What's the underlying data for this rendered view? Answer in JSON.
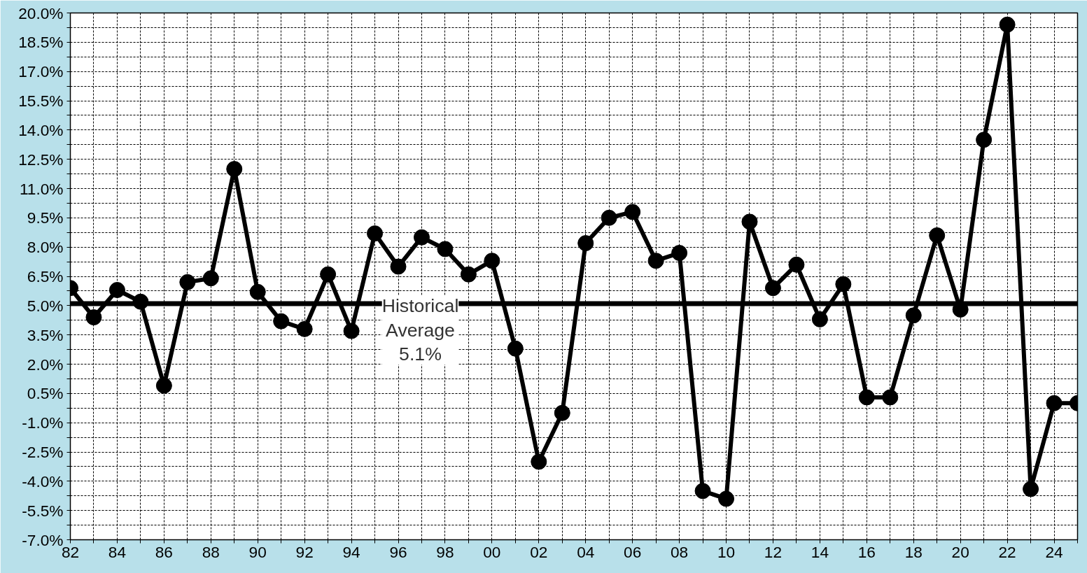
{
  "chart_data": {
    "type": "line",
    "x": [
      1982,
      1983,
      1984,
      1985,
      1986,
      1987,
      1988,
      1989,
      1990,
      1991,
      1992,
      1993,
      1994,
      1995,
      1996,
      1997,
      1998,
      1999,
      2000,
      2001,
      2002,
      2003,
      2004,
      2005,
      2006,
      2007,
      2008,
      2009,
      2010,
      2011,
      2012,
      2013,
      2014,
      2015,
      2016,
      2017,
      2018,
      2019,
      2020,
      2021,
      2022,
      2023,
      2024,
      2025
    ],
    "series": [
      {
        "color": "#000000",
        "values": [
          5.9,
          4.4,
          5.8,
          5.2,
          0.9,
          6.2,
          6.4,
          12.0,
          5.7,
          4.2,
          3.8,
          6.6,
          3.7,
          8.7,
          7.0,
          8.5,
          7.9,
          6.6,
          7.3,
          2.8,
          -3.0,
          -0.5,
          8.2,
          9.5,
          9.8,
          7.3,
          7.7,
          -4.5,
          -4.9,
          9.3,
          5.9,
          7.1,
          4.3,
          6.1,
          0.3,
          0.3,
          4.5,
          8.6,
          4.8,
          13.5,
          19.4,
          -4.4,
          0.0,
          0.0
        ]
      }
    ],
    "xlim": [
      1982,
      2025
    ],
    "ylim": [
      -7,
      20
    ],
    "xticks": [
      {
        "value": 1982,
        "label": "82"
      },
      {
        "value": 1983,
        "label": null
      },
      {
        "value": 1984,
        "label": "84"
      },
      {
        "value": 1985,
        "label": null
      },
      {
        "value": 1986,
        "label": "86"
      },
      {
        "value": 1987,
        "label": null
      },
      {
        "value": 1988,
        "label": "88"
      },
      {
        "value": 1989,
        "label": null
      },
      {
        "value": 1990,
        "label": "90"
      },
      {
        "value": 1991,
        "label": null
      },
      {
        "value": 1992,
        "label": "92"
      },
      {
        "value": 1993,
        "label": null
      },
      {
        "value": 1994,
        "label": "94"
      },
      {
        "value": 1995,
        "label": null
      },
      {
        "value": 1996,
        "label": "96"
      },
      {
        "value": 1997,
        "label": null
      },
      {
        "value": 1998,
        "label": "98"
      },
      {
        "value": 1999,
        "label": null
      },
      {
        "value": 2000,
        "label": "00"
      },
      {
        "value": 2001,
        "label": null
      },
      {
        "value": 2002,
        "label": "02"
      },
      {
        "value": 2003,
        "label": null
      },
      {
        "value": 2004,
        "label": "04"
      },
      {
        "value": 2005,
        "label": null
      },
      {
        "value": 2006,
        "label": "06"
      },
      {
        "value": 2007,
        "label": null
      },
      {
        "value": 2008,
        "label": "08"
      },
      {
        "value": 2009,
        "label": null
      },
      {
        "value": 2010,
        "label": "10"
      },
      {
        "value": 2011,
        "label": null
      },
      {
        "value": 2012,
        "label": "12"
      },
      {
        "value": 2013,
        "label": null
      },
      {
        "value": 2014,
        "label": "14"
      },
      {
        "value": 2015,
        "label": null
      },
      {
        "value": 2016,
        "label": "16"
      },
      {
        "value": 2017,
        "label": null
      },
      {
        "value": 2018,
        "label": "18"
      },
      {
        "value": 2019,
        "label": null
      },
      {
        "value": 2020,
        "label": "20"
      },
      {
        "value": 2021,
        "label": null
      },
      {
        "value": 2022,
        "label": "22"
      },
      {
        "value": 2023,
        "label": null
      },
      {
        "value": 2024,
        "label": "24"
      },
      {
        "value": 2025,
        "label": null
      }
    ],
    "yticks": [
      {
        "value": -7,
        "label": "-7.0%"
      },
      {
        "value": -6.25,
        "label": null
      },
      {
        "value": -5.5,
        "label": "-5.5%"
      },
      {
        "value": -4.75,
        "label": null
      },
      {
        "value": -4,
        "label": "-4.0%"
      },
      {
        "value": -3.25,
        "label": null
      },
      {
        "value": -2.5,
        "label": "-2.5%"
      },
      {
        "value": -1.75,
        "label": null
      },
      {
        "value": -1,
        "label": "-1.0%"
      },
      {
        "value": -0.25,
        "label": null
      },
      {
        "value": 0.5,
        "label": "0.5%"
      },
      {
        "value": 1.25,
        "label": null
      },
      {
        "value": 2,
        "label": "2.0%"
      },
      {
        "value": 2.75,
        "label": null
      },
      {
        "value": 3.5,
        "label": "3.5%"
      },
      {
        "value": 4.25,
        "label": null
      },
      {
        "value": 5,
        "label": "5.0%"
      },
      {
        "value": 5.75,
        "label": null
      },
      {
        "value": 6.5,
        "label": "6.5%"
      },
      {
        "value": 7.25,
        "label": null
      },
      {
        "value": 8,
        "label": "8.0%"
      },
      {
        "value": 8.75,
        "label": null
      },
      {
        "value": 9.5,
        "label": "9.5%"
      },
      {
        "value": 10.25,
        "label": null
      },
      {
        "value": 11,
        "label": "11.0%"
      },
      {
        "value": 11.75,
        "label": null
      },
      {
        "value": 12.5,
        "label": "12.5%"
      },
      {
        "value": 13.25,
        "label": null
      },
      {
        "value": 14,
        "label": "14.0%"
      },
      {
        "value": 14.75,
        "label": null
      },
      {
        "value": 15.5,
        "label": "15.5%"
      },
      {
        "value": 16.25,
        "label": null
      },
      {
        "value": 17,
        "label": "17.0%"
      },
      {
        "value": 17.75,
        "label": null
      },
      {
        "value": 18.5,
        "label": "18.5%"
      },
      {
        "value": 19.25,
        "label": null
      },
      {
        "value": 20,
        "label": "20.0%"
      }
    ],
    "grid": true,
    "marker": "circle",
    "line_style": "solid",
    "ref_lines": [
      {
        "axis": "y",
        "value": 5.1,
        "color": "#000000"
      }
    ],
    "annotations": [
      "Historical\nAverage\n5.1%"
    ]
  }
}
